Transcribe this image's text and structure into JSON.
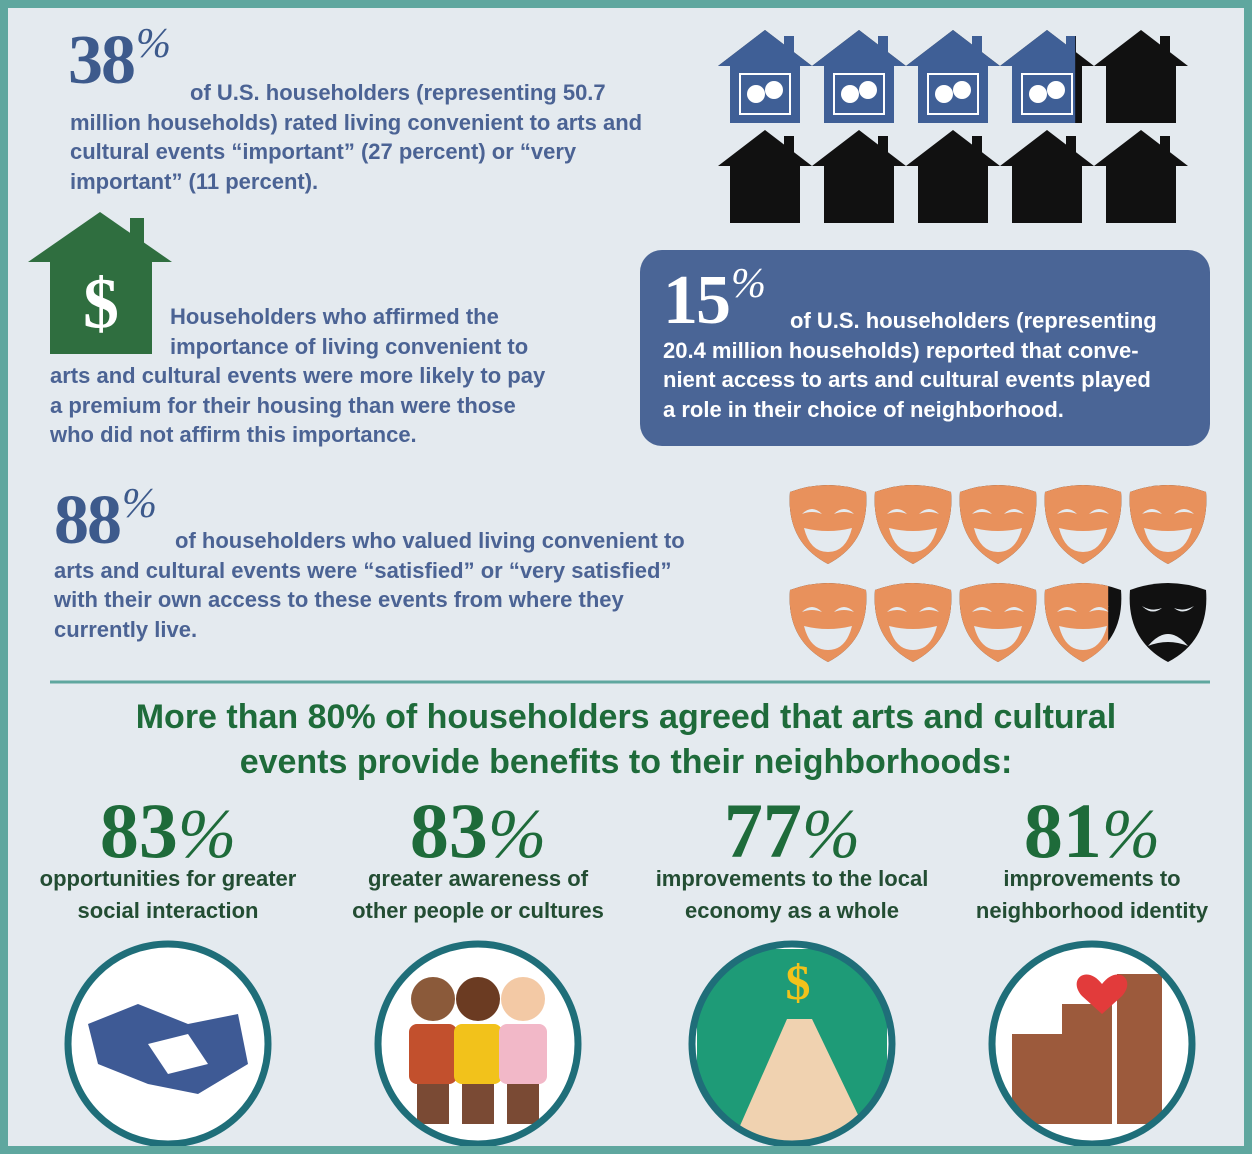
{
  "stats": [
    {
      "value": 38,
      "unit": "%",
      "lines": [
        "of U.S. householders (representing 50.7",
        "million households) rated living convenient to arts and",
        "cultural events “important” (27 percent) or “very",
        "important” (11 percent)."
      ]
    },
    {
      "value": 15,
      "unit": "%",
      "lines": [
        "of U.S. householders (representing",
        "20.4 million households) reported that conve-",
        "nient access to arts and cultural events played",
        "a role in their choice of neighborhood."
      ]
    },
    {
      "value": 88,
      "unit": "%",
      "lines": [
        "of householders who valued living convenient to",
        "arts and cultural events were “satisfied” or “very satisfied”",
        "with their own access to these events from where they",
        "currently live."
      ]
    }
  ],
  "premium": {
    "icon": "$",
    "lines": [
      "Householders who affirmed the",
      "importance of living convenient to",
      "arts and cultural events were more likely to pay",
      "a premium for their housing than were those",
      "who did not affirm this importance."
    ]
  },
  "benefits": {
    "heading_lines": [
      "More than 80% of householders agreed that arts and cultural",
      "events provide benefits to their neighborhoods:"
    ],
    "items": [
      {
        "value": 83,
        "unit": "%",
        "label_lines": [
          "opportunities for greater",
          "social interaction"
        ]
      },
      {
        "value": 83,
        "unit": "%",
        "label_lines": [
          "greater awareness of",
          "other people or cultures"
        ]
      },
      {
        "value": 77,
        "unit": "%",
        "label_lines": [
          "improvements to the local",
          "economy as a whole"
        ]
      },
      {
        "value": 81,
        "unit": "%",
        "label_lines": [
          "improvements to",
          "neighborhood identity"
        ]
      }
    ]
  }
}
